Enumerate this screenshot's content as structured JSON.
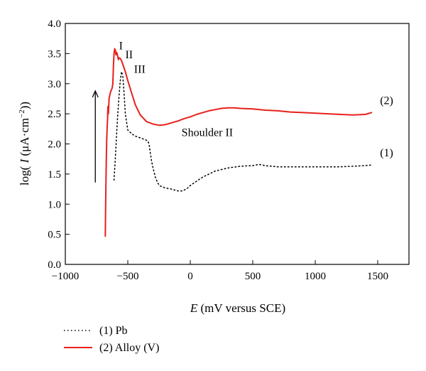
{
  "chart_data": {
    "type": "line",
    "title": "",
    "xlabel_italic": "E",
    "xlabel_rest": " (mV versus SCE)",
    "ylabel_prefix": "log( ",
    "ylabel_italic": "I",
    "ylabel_mu": " (μ",
    "ylabel_unit": "A·cm",
    "ylabel_exp": "−2",
    "ylabel_suffix": "))",
    "xlim": [
      -1000,
      1750
    ],
    "ylim": [
      0.0,
      4.0
    ],
    "xticks": [
      -1000,
      -500,
      0,
      500,
      1000,
      1500
    ],
    "xtick_labels": [
      "−1000",
      "−500",
      "0",
      "500",
      "1000",
      "1500"
    ],
    "yticks": [
      0.0,
      0.5,
      1.0,
      1.5,
      2.0,
      2.5,
      3.0,
      3.5,
      4.0
    ],
    "ytick_labels": [
      "0.0",
      "0.5",
      "1.0",
      "1.5",
      "2.0",
      "2.5",
      "3.0",
      "3.5",
      "4.0"
    ],
    "grid": false,
    "legend_position": "below-left",
    "series": [
      {
        "name": "(1) Pb",
        "curve_label": "(1)",
        "color": "#000000",
        "style": "dotted",
        "x": [
          -610,
          -600,
          -590,
          -580,
          -570,
          -560,
          -550,
          -540,
          -530,
          -520,
          -500,
          -470,
          -440,
          -400,
          -360,
          -340,
          -330,
          -320,
          -310,
          -300,
          -280,
          -260,
          -240,
          -200,
          -150,
          -100,
          -60,
          -20,
          0,
          50,
          100,
          150,
          200,
          300,
          400,
          500,
          550,
          600,
          700,
          800,
          900,
          1000,
          1100,
          1200,
          1300,
          1400,
          1450
        ],
        "y": [
          1.4,
          1.75,
          2.15,
          2.5,
          2.8,
          3.05,
          3.2,
          3.12,
          2.85,
          2.5,
          2.23,
          2.17,
          2.13,
          2.1,
          2.07,
          2.05,
          2.0,
          1.85,
          1.72,
          1.62,
          1.45,
          1.35,
          1.3,
          1.27,
          1.25,
          1.22,
          1.22,
          1.27,
          1.31,
          1.38,
          1.45,
          1.5,
          1.55,
          1.6,
          1.63,
          1.64,
          1.66,
          1.64,
          1.62,
          1.62,
          1.62,
          1.62,
          1.62,
          1.62,
          1.63,
          1.64,
          1.65
        ]
      },
      {
        "name": "(2) Alloy (V)",
        "curve_label": "(2)",
        "color": "#e8201c",
        "style": "solid",
        "x": [
          -680,
          -677,
          -674,
          -671,
          -668,
          -665,
          -662,
          -659,
          -655,
          -650,
          -645,
          -640,
          -635,
          -630,
          -625,
          -620,
          -615,
          -610,
          -605,
          -600,
          -595,
          -590,
          -585,
          -580,
          -575,
          -570,
          -560,
          -550,
          -540,
          -520,
          -500,
          -470,
          -440,
          -400,
          -350,
          -300,
          -250,
          -200,
          -150,
          -100,
          -50,
          0,
          50,
          100,
          150,
          200,
          250,
          300,
          350,
          400,
          500,
          600,
          700,
          800,
          900,
          1000,
          1100,
          1200,
          1300,
          1400,
          1450
        ],
        "y": [
          0.47,
          1.0,
          1.5,
          1.85,
          2.1,
          2.3,
          2.4,
          2.62,
          2.5,
          2.75,
          2.8,
          2.85,
          2.88,
          2.9,
          2.93,
          3.0,
          3.3,
          3.5,
          3.58,
          3.56,
          3.48,
          3.52,
          3.5,
          3.45,
          3.4,
          3.43,
          3.42,
          3.38,
          3.32,
          3.2,
          3.05,
          2.85,
          2.65,
          2.48,
          2.37,
          2.33,
          2.31,
          2.32,
          2.35,
          2.38,
          2.42,
          2.45,
          2.49,
          2.52,
          2.55,
          2.57,
          2.59,
          2.6,
          2.6,
          2.59,
          2.58,
          2.56,
          2.55,
          2.53,
          2.52,
          2.51,
          2.5,
          2.49,
          2.48,
          2.49,
          2.52
        ]
      }
    ],
    "annotations": [
      {
        "text": "I",
        "x": -570,
        "y": 3.57
      },
      {
        "text": "II",
        "x": -520,
        "y": 3.42
      },
      {
        "text": "III",
        "x": -450,
        "y": 3.18
      },
      {
        "text": "Shoulder II",
        "x": -70,
        "y": 2.13
      }
    ],
    "arrow": {
      "x": -760,
      "y_from": 1.36,
      "y_to": 2.88,
      "direction": "up"
    }
  }
}
